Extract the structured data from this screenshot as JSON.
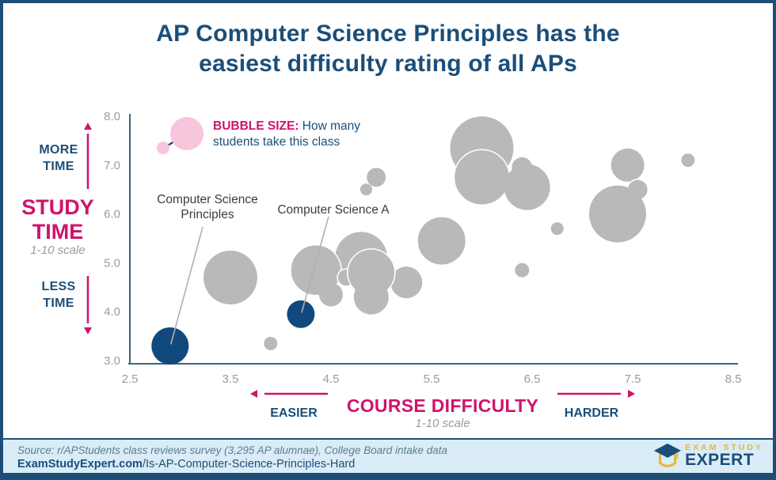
{
  "page": {
    "title": "AP Computer Science Principles has the\neasiest difficulty rating of all APs"
  },
  "colors": {
    "navy": "#1b4e79",
    "magenta": "#d0136b",
    "bubble_gray": "#b9b9b9",
    "bubble_blue": "#11497e",
    "legend_pink": "#f7c5dc",
    "axis": "#3e6574",
    "tick_gray": "#9b9b9b",
    "leader_gray": "#b0b0b0",
    "footer_bg": "#d9ecf7",
    "logo_gold": "#e9b63b"
  },
  "left_axis": {
    "more_time": "MORE\nTIME",
    "title": "STUDY\nTIME",
    "subtitle": "1-10 scale",
    "less_time": "LESS\nTIME"
  },
  "x_axis": {
    "easier": "EASIER",
    "title": "COURSE DIFFICULTY",
    "subtitle": "1-10 scale",
    "harder": "HARDER"
  },
  "legend": {
    "title": "BUBBLE SIZE:",
    "text": " How many students take this class"
  },
  "annotations": [
    {
      "label": "Computer Science\nPrinciples",
      "course": "Computer Science Principles"
    },
    {
      "label": "Computer Science A",
      "course": "Computer Science A"
    }
  ],
  "footer": {
    "source": "Source: r/APStudents class reviews survey (3,295 AP alumnae), College Board intake data",
    "site_bold": "ExamStudyExpert.com",
    "site_rest": "/Is-AP-Computer-Science-Principles-Hard",
    "logo_top": "EXAM STUDY",
    "logo_bottom": "EXPERT"
  },
  "chart_data": {
    "type": "scatter",
    "subtype": "bubble",
    "title": "AP Computer Science Principles has the easiest difficulty rating of all APs",
    "xlabel": "COURSE DIFFICULTY (1-10 scale)",
    "ylabel": "STUDY TIME (1-10 scale)",
    "xlim": [
      2.5,
      8.5
    ],
    "ylim": [
      3.0,
      8.0
    ],
    "grid": false,
    "size_legend": "Bubble size = how many students take this class",
    "x_ticks": [
      {
        "v": 2.5,
        "label": "2.5"
      },
      {
        "v": 3.5,
        "label": "3.5"
      },
      {
        "v": 4.5,
        "label": "4.5"
      },
      {
        "v": 5.5,
        "label": "5.5"
      },
      {
        "v": 6.5,
        "label": "6.5"
      },
      {
        "v": 7.5,
        "label": "7.5"
      },
      {
        "v": 8.5,
        "label": "8.5"
      }
    ],
    "y_ticks": [
      {
        "v": 8.0,
        "label": "8.0"
      },
      {
        "v": 7.0,
        "label": "7.0"
      },
      {
        "v": 6.0,
        "label": "6.0"
      },
      {
        "v": 5.0,
        "label": "5.0"
      },
      {
        "v": 4.0,
        "label": "4.0"
      },
      {
        "v": 3.0,
        "label": "3.0"
      }
    ],
    "bubbles": [
      {
        "x": 4.8,
        "y": 5.1,
        "r": 33,
        "color": "gray",
        "stroke": false
      },
      {
        "x": 5.25,
        "y": 4.6,
        "r": 20,
        "color": "gray",
        "stroke": false
      },
      {
        "x": 4.35,
        "y": 4.85,
        "r": 32,
        "color": "gray",
        "stroke": true
      },
      {
        "x": 4.5,
        "y": 4.35,
        "r": 15,
        "color": "gray",
        "stroke": false
      },
      {
        "x": 4.65,
        "y": 4.7,
        "r": 11,
        "color": "gray",
        "stroke": true
      },
      {
        "x": 4.9,
        "y": 4.8,
        "r": 30,
        "color": "gray",
        "stroke": true
      },
      {
        "x": 4.9,
        "y": 4.3,
        "r": 22,
        "color": "gray",
        "stroke": false
      },
      {
        "x": 5.6,
        "y": 5.45,
        "r": 30,
        "color": "gray",
        "stroke": false
      },
      {
        "x": 3.5,
        "y": 4.7,
        "r": 34,
        "color": "gray",
        "stroke": false
      },
      {
        "x": 3.9,
        "y": 3.35,
        "r": 8.5,
        "color": "gray",
        "stroke": false
      },
      {
        "x": 4.95,
        "y": 6.75,
        "r": 12,
        "color": "gray",
        "stroke": false
      },
      {
        "x": 4.85,
        "y": 6.5,
        "r": 7.5,
        "color": "gray",
        "stroke": false
      },
      {
        "x": 6.0,
        "y": 7.35,
        "r": 40,
        "color": "gray",
        "stroke": false
      },
      {
        "x": 6.0,
        "y": 6.75,
        "r": 35,
        "color": "gray",
        "stroke": true
      },
      {
        "x": 6.4,
        "y": 6.95,
        "r": 13,
        "color": "gray",
        "stroke": false
      },
      {
        "x": 6.45,
        "y": 6.55,
        "r": 29,
        "color": "gray",
        "stroke": false
      },
      {
        "x": 6.4,
        "y": 4.85,
        "r": 9,
        "color": "gray",
        "stroke": false
      },
      {
        "x": 6.75,
        "y": 5.7,
        "r": 8,
        "color": "gray",
        "stroke": false
      },
      {
        "x": 7.45,
        "y": 7.0,
        "r": 21,
        "color": "gray",
        "stroke": false
      },
      {
        "x": 7.55,
        "y": 6.5,
        "r": 13,
        "color": "gray",
        "stroke": true
      },
      {
        "x": 7.35,
        "y": 6.0,
        "r": 36,
        "color": "gray",
        "stroke": false
      },
      {
        "x": 8.05,
        "y": 7.1,
        "r": 8.5,
        "color": "gray",
        "stroke": false
      },
      {
        "x": 2.9,
        "y": 3.3,
        "r": 23.5,
        "color": "blue",
        "stroke": false,
        "label": "Computer Science Principles"
      },
      {
        "x": 4.2,
        "y": 3.95,
        "r": 17.5,
        "color": "blue",
        "stroke": false,
        "label": "Computer Science A"
      }
    ]
  }
}
